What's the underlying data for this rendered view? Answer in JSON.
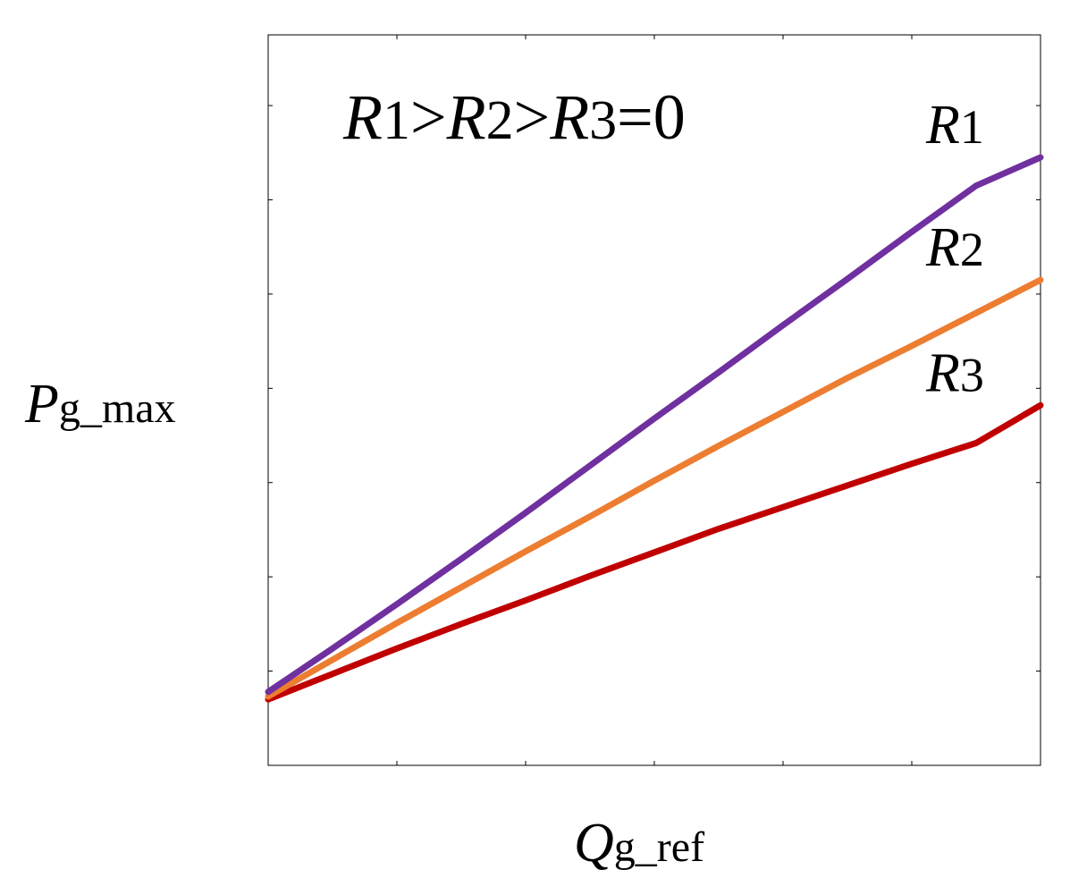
{
  "chart_data": {
    "type": "line",
    "title_parts": [
      {
        "name": "r1",
        "italic": "R",
        "sub": "1"
      },
      {
        "op": ">"
      },
      {
        "name": "r2",
        "italic": "R",
        "sub": "2"
      },
      {
        "op": ">"
      },
      {
        "name": "r3",
        "italic": "R",
        "sub": "3"
      },
      {
        "op": "=0"
      }
    ],
    "xlabel": {
      "main": "Q",
      "sub": "g_ref"
    },
    "ylabel": {
      "main": "P",
      "sub": "g_max"
    },
    "xlim": [
      0,
      6
    ],
    "ylim": [
      0,
      7.75
    ],
    "xticks": [
      0,
      1,
      2,
      3,
      4,
      5,
      6
    ],
    "yticks": [
      0,
      1,
      2,
      3,
      4,
      5,
      6,
      7
    ],
    "tick_labels_shown": false,
    "grid": false,
    "x": [
      0,
      0.5,
      1,
      1.5,
      2,
      2.5,
      3,
      3.5,
      4,
      4.5,
      5,
      5.5,
      6
    ],
    "series": [
      {
        "id": "s1",
        "label_main": "R",
        "label_sub": "1",
        "color": "#7030a0",
        "values": [
          0.78,
          1.24,
          1.71,
          2.19,
          2.68,
          3.18,
          3.68,
          4.17,
          4.67,
          5.16,
          5.66,
          6.15,
          6.45
        ]
      },
      {
        "id": "s2",
        "label_main": "R",
        "label_sub": "2",
        "color": "#ed7d31",
        "values": [
          0.73,
          1.12,
          1.51,
          1.89,
          2.27,
          2.64,
          3.02,
          3.39,
          3.75,
          4.11,
          4.45,
          4.8,
          5.15
        ]
      },
      {
        "id": "s3",
        "label_main": "R",
        "label_sub": "3",
        "color": "#c00000",
        "values": [
          0.7,
          0.97,
          1.24,
          1.5,
          1.75,
          2.01,
          2.26,
          2.51,
          2.74,
          2.97,
          3.2,
          3.42,
          3.82
        ]
      }
    ]
  }
}
